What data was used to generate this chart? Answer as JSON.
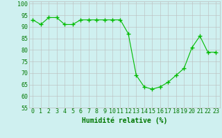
{
  "x": [
    0,
    1,
    2,
    3,
    4,
    5,
    6,
    7,
    8,
    9,
    10,
    11,
    12,
    13,
    14,
    15,
    16,
    17,
    18,
    19,
    20,
    21,
    22,
    23
  ],
  "y": [
    93,
    91,
    94,
    94,
    91,
    91,
    93,
    93,
    93,
    93,
    93,
    93,
    87,
    69,
    64,
    63,
    64,
    66,
    69,
    72,
    81,
    86,
    79,
    79
  ],
  "line_color": "#00bb00",
  "marker": "+",
  "marker_size": 4,
  "bg_color": "#cff0f0",
  "grid_color": "#bbbbbb",
  "xlabel": "Humidité relative (%)",
  "xlabel_color": "#007700",
  "xlabel_fontsize": 7,
  "tick_color": "#007700",
  "tick_fontsize": 6,
  "ylim": [
    55,
    101
  ],
  "xlim": [
    -0.5,
    23.5
  ],
  "yticks": [
    55,
    60,
    65,
    70,
    75,
    80,
    85,
    90,
    95,
    100
  ],
  "xticks": [
    0,
    1,
    2,
    3,
    4,
    5,
    6,
    7,
    8,
    9,
    10,
    11,
    12,
    13,
    14,
    15,
    16,
    17,
    18,
    19,
    20,
    21,
    22,
    23
  ]
}
